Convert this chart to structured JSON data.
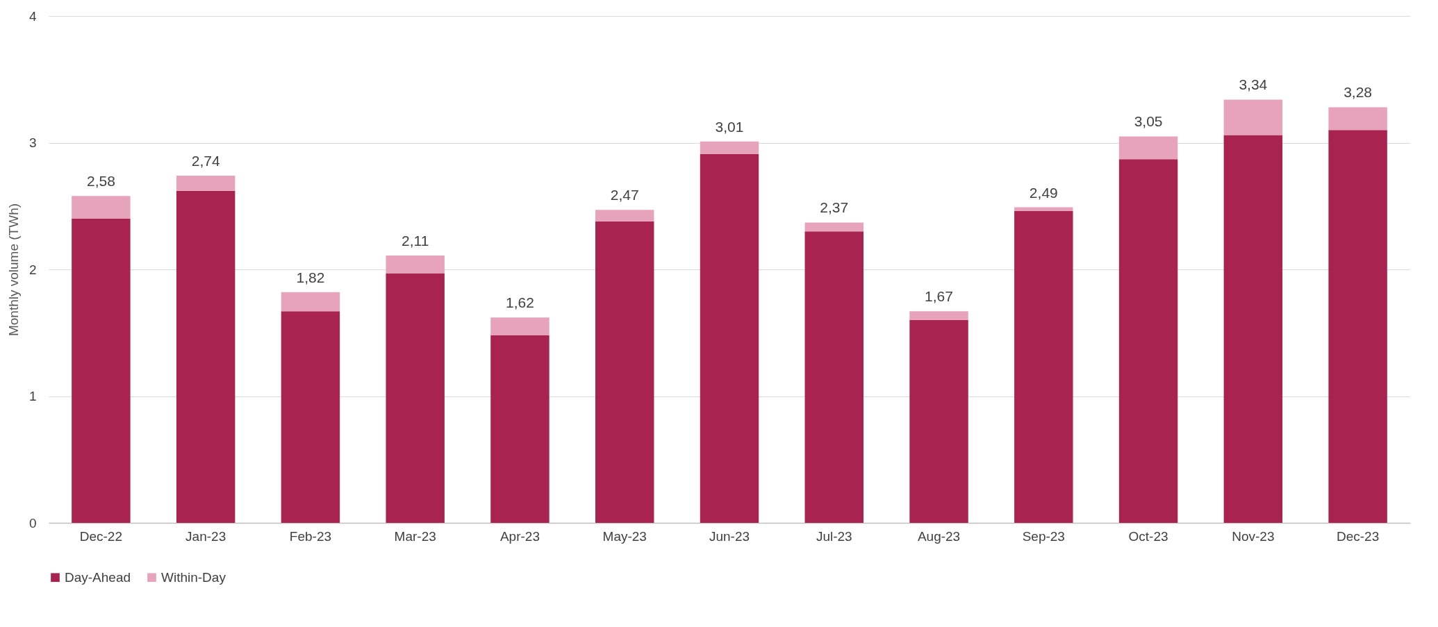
{
  "chart_data": {
    "type": "bar",
    "stacked": true,
    "ylabel": "Monthly volume (TWh)",
    "categories": [
      "Dec-22",
      "Jan-23",
      "Feb-23",
      "Mar-23",
      "Apr-23",
      "May-23",
      "Jun-23",
      "Jul-23",
      "Aug-23",
      "Sep-23",
      "Oct-23",
      "Nov-23",
      "Dec-23"
    ],
    "series": [
      {
        "name": "Day-Ahead",
        "color": "#a8234f",
        "values": [
          2.4,
          2.62,
          1.67,
          1.97,
          1.48,
          2.38,
          2.91,
          2.3,
          1.6,
          2.46,
          2.87,
          3.06,
          3.1
        ]
      },
      {
        "name": "Within-Day",
        "color": "#e8a3bc",
        "values": [
          0.18,
          0.12,
          0.15,
          0.14,
          0.14,
          0.09,
          0.1,
          0.07,
          0.07,
          0.03,
          0.18,
          0.28,
          0.18
        ]
      }
    ],
    "totals": [
      "2,58",
      "2,74",
      "1,82",
      "2,11",
      "1,62",
      "2,47",
      "3,01",
      "2,37",
      "1,67",
      "2,49",
      "3,05",
      "3,34",
      "3,28"
    ],
    "ylim": [
      0,
      4
    ],
    "yticks": [
      0,
      1,
      2,
      3,
      4
    ],
    "grid": "y",
    "legend": "bottom"
  }
}
